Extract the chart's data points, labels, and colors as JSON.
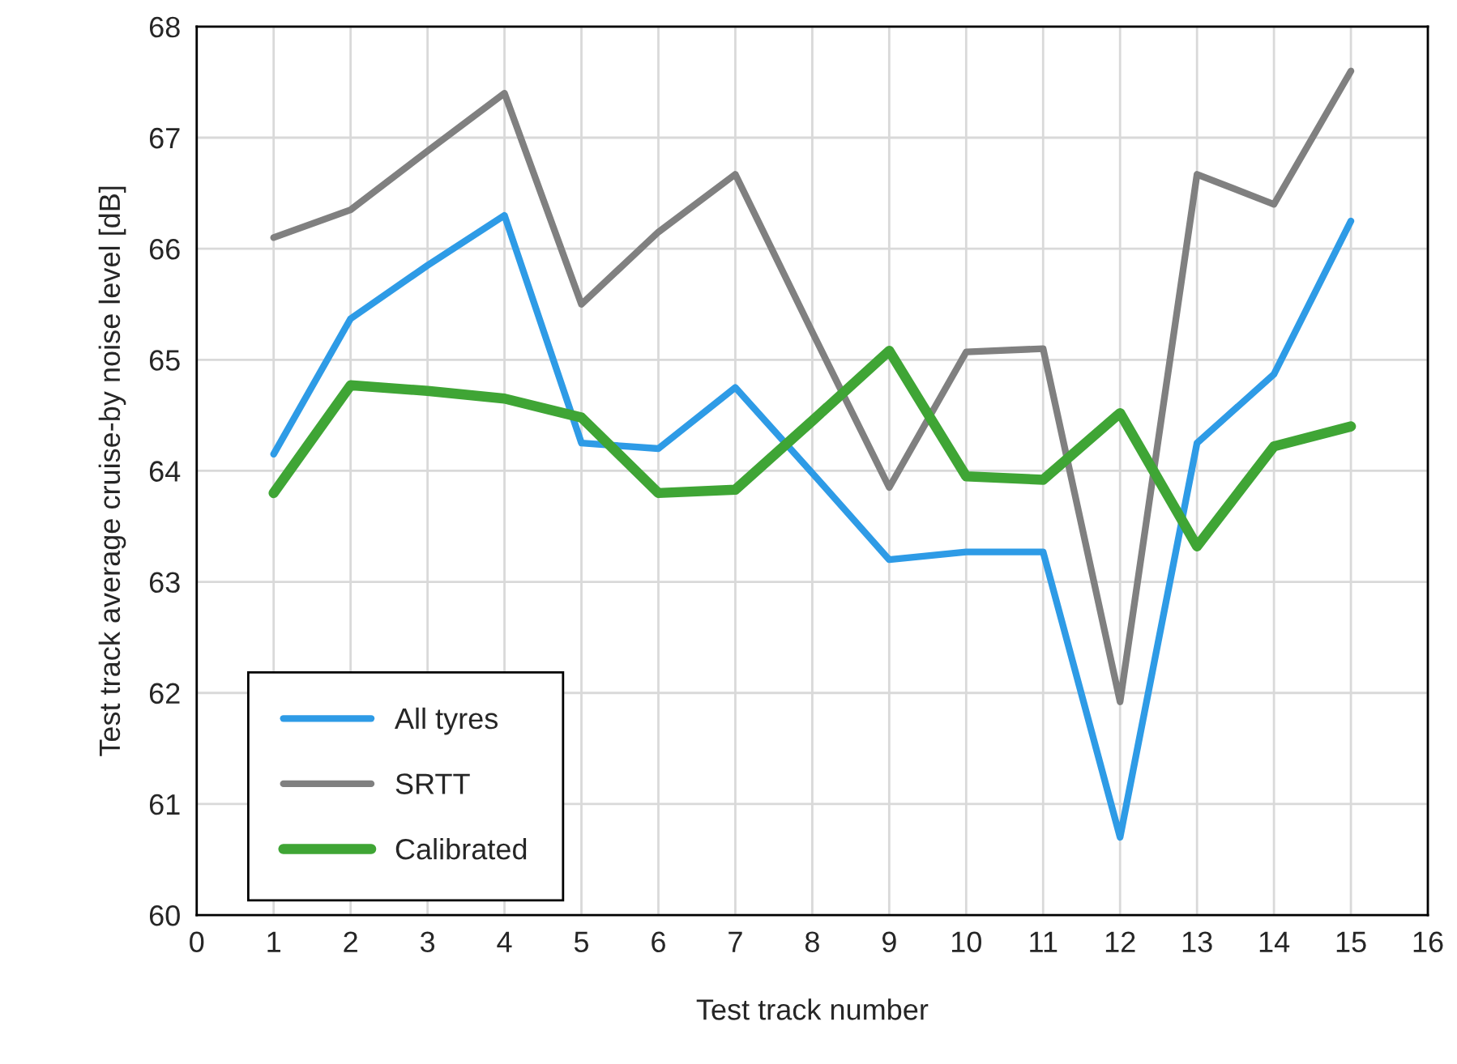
{
  "chart_data": {
    "type": "line",
    "xlabel": "Test track number",
    "ylabel": "Test track average cruise-by noise level [dB]",
    "x": [
      1,
      2,
      3,
      4,
      5,
      6,
      7,
      8,
      9,
      10,
      11,
      12,
      13,
      14,
      15
    ],
    "series": [
      {
        "name": "All tyres",
        "color": "#2e9be6",
        "values": [
          64.15,
          65.37,
          65.85,
          66.3,
          64.25,
          64.2,
          64.75,
          63.98,
          63.2,
          63.27,
          63.27,
          60.7,
          64.25,
          64.87,
          66.25
        ]
      },
      {
        "name": "SRTT",
        "color": "#808080",
        "values": [
          66.1,
          66.35,
          66.88,
          67.4,
          65.5,
          66.15,
          66.67,
          65.25,
          63.85,
          65.07,
          65.1,
          61.92,
          66.67,
          66.4,
          67.6
        ]
      },
      {
        "name": "Calibrated",
        "color": "#3fa535",
        "values": [
          63.8,
          64.77,
          64.72,
          64.65,
          64.48,
          63.8,
          63.83,
          64.45,
          65.08,
          63.95,
          63.92,
          64.52,
          63.32,
          64.22,
          64.4
        ]
      }
    ],
    "xlim": [
      0,
      16
    ],
    "xticks": [
      0,
      1,
      2,
      3,
      4,
      5,
      6,
      7,
      8,
      9,
      10,
      11,
      12,
      13,
      14,
      15,
      16
    ],
    "ylim": [
      60,
      68
    ],
    "yticks": [
      60,
      61,
      62,
      63,
      64,
      65,
      66,
      67,
      68
    ],
    "grid": true,
    "legend": "bottom left",
    "marker": "none",
    "line_style": "solid"
  }
}
